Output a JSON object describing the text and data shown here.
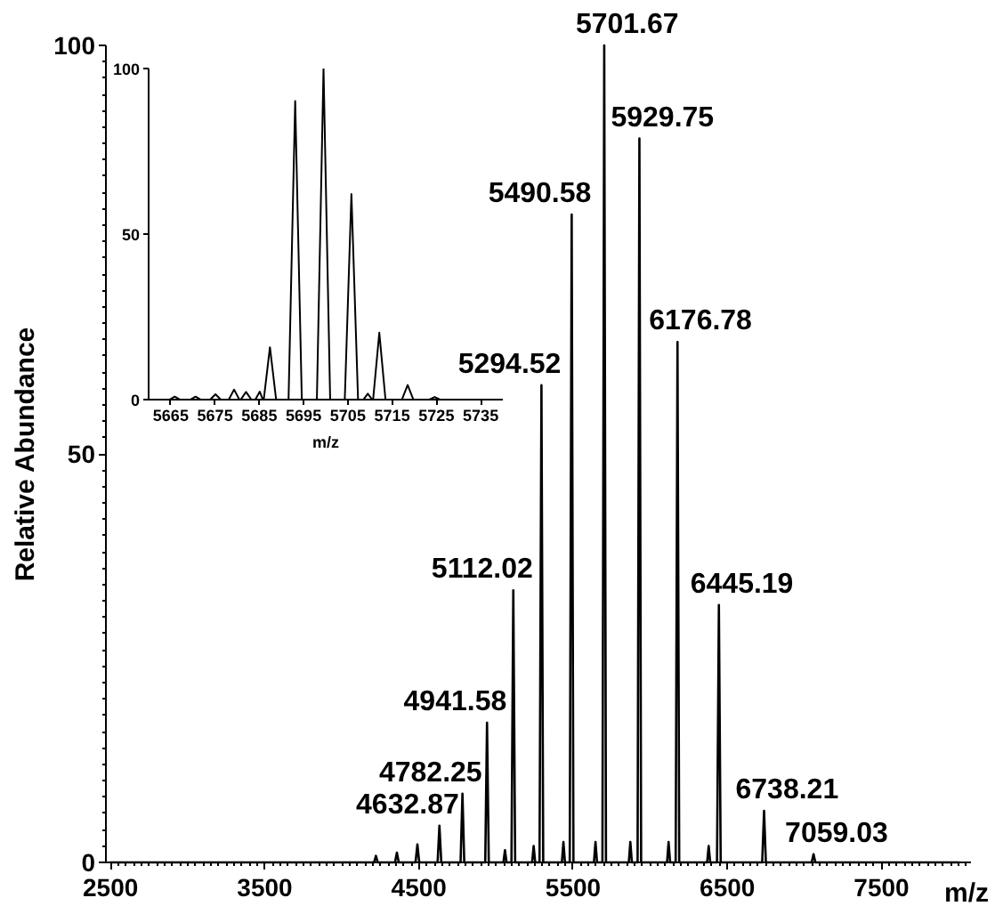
{
  "chart_data": [
    {
      "type": "line",
      "xlabel": "m/z",
      "ylabel": "Relative Abundance",
      "series": [
        {
          "color": "#000000",
          "x": [
            2500,
            4209,
            4221,
            4233,
            4345,
            4357,
            4369,
            4478,
            4490,
            4502,
            4621,
            4632.87,
            4645,
            4770,
            4782.25,
            4794,
            4930,
            4941.58,
            4953,
            5048,
            5058,
            5068,
            5100,
            5112.02,
            5124,
            5234,
            5244,
            5254,
            5282,
            5294.52,
            5306,
            5427,
            5437,
            5447,
            5478,
            5490.58,
            5502,
            5635,
            5645,
            5655,
            5690,
            5701.67,
            5713,
            5861,
            5871,
            5881,
            5918,
            5929.75,
            5941,
            6109,
            6119,
            6129,
            6165,
            6176.78,
            6188,
            6369,
            6379,
            6389,
            6433,
            6445.19,
            6457,
            6726,
            6738.21,
            6750,
            7047,
            7059.03,
            7071,
            8000
          ],
          "values": [
            0,
            0,
            0.8,
            0,
            0,
            1.2,
            0,
            0,
            2.2,
            0,
            0,
            4.5,
            0,
            0,
            8.4,
            0,
            0,
            17.1,
            0,
            0,
            1.5,
            0,
            0,
            33.3,
            0,
            0,
            2,
            0,
            0,
            58.4,
            0,
            0,
            2.5,
            0,
            0,
            79.3,
            0,
            0,
            2.5,
            0,
            0,
            100,
            0,
            0,
            2.5,
            0,
            0,
            88.6,
            0,
            0,
            2.5,
            0,
            0,
            63.7,
            0,
            0,
            2,
            0,
            0,
            31.5,
            0,
            0,
            6.3,
            0,
            0,
            1,
            0,
            0
          ]
        }
      ],
      "xlim": [
        2470,
        8080
      ],
      "xticks": [
        2500,
        3500,
        4500,
        5500,
        6500,
        7500
      ],
      "ylim": [
        0,
        100
      ],
      "yticks": [
        0,
        50,
        100
      ],
      "annotations": [
        {
          "text": "4632.87",
          "x": 4632.87,
          "y": 4.5
        },
        {
          "text": "4782.25",
          "x": 4782.25,
          "y": 8.4
        },
        {
          "text": "4941.58",
          "x": 4941.58,
          "y": 17.1
        },
        {
          "text": "5112.02",
          "x": 5112.02,
          "y": 33.3
        },
        {
          "text": "5294.52",
          "x": 5294.52,
          "y": 58.4
        },
        {
          "text": "5490.58",
          "x": 5490.58,
          "y": 79.3
        },
        {
          "text": "5701.67",
          "x": 5701.67,
          "y": 100
        },
        {
          "text": "5929.75",
          "x": 5929.75,
          "y": 88.6
        },
        {
          "text": "6176.78",
          "x": 6176.78,
          "y": 63.7
        },
        {
          "text": "6445.19",
          "x": 6445.19,
          "y": 31.5
        },
        {
          "text": "6738.21",
          "x": 6738.21,
          "y": 6.3
        },
        {
          "text": "7059.03",
          "x": 7059.03,
          "y": 1
        }
      ]
    },
    {
      "type": "line",
      "xlabel": "m/z",
      "series": [
        {
          "color": "#000000",
          "x": [
            5661,
            5664.7,
            5665.9,
            5667.1,
            5669.4,
            5670.6,
            5671.8,
            5673.9,
            5675.1,
            5676.3,
            5678.1,
            5679.3,
            5680.5,
            5680.8,
            5682,
            5683.2,
            5684.1,
            5685.1,
            5685.8,
            5686,
            5687.4,
            5688.8,
            5691.6,
            5693.1,
            5694.6,
            5698,
            5699.5,
            5701,
            5704.3,
            5705.8,
            5707.3,
            5708.5,
            5709.5,
            5710.5,
            5710.7,
            5712.1,
            5713.5,
            5717.2,
            5718.5,
            5719.8,
            5723.4,
            5724.6,
            5725.8,
            5739
          ],
          "values": [
            0,
            0,
            0.9,
            0,
            0,
            0.9,
            0,
            0,
            1.6,
            0,
            0,
            3,
            0,
            0,
            2.3,
            0,
            0,
            2.4,
            0,
            0,
            15.8,
            0,
            0,
            90.2,
            0,
            0,
            100,
            0,
            0,
            62.1,
            0,
            0,
            1.8,
            0,
            0,
            20.2,
            0,
            0,
            4.4,
            0,
            0,
            0.8,
            0,
            0
          ]
        }
      ],
      "xlim": [
        5660,
        5740
      ],
      "xticks": [
        5665,
        5675,
        5685,
        5695,
        5705,
        5715,
        5725,
        5735
      ],
      "ylim": [
        0,
        100
      ],
      "yticks": [
        0,
        50,
        100
      ]
    }
  ]
}
